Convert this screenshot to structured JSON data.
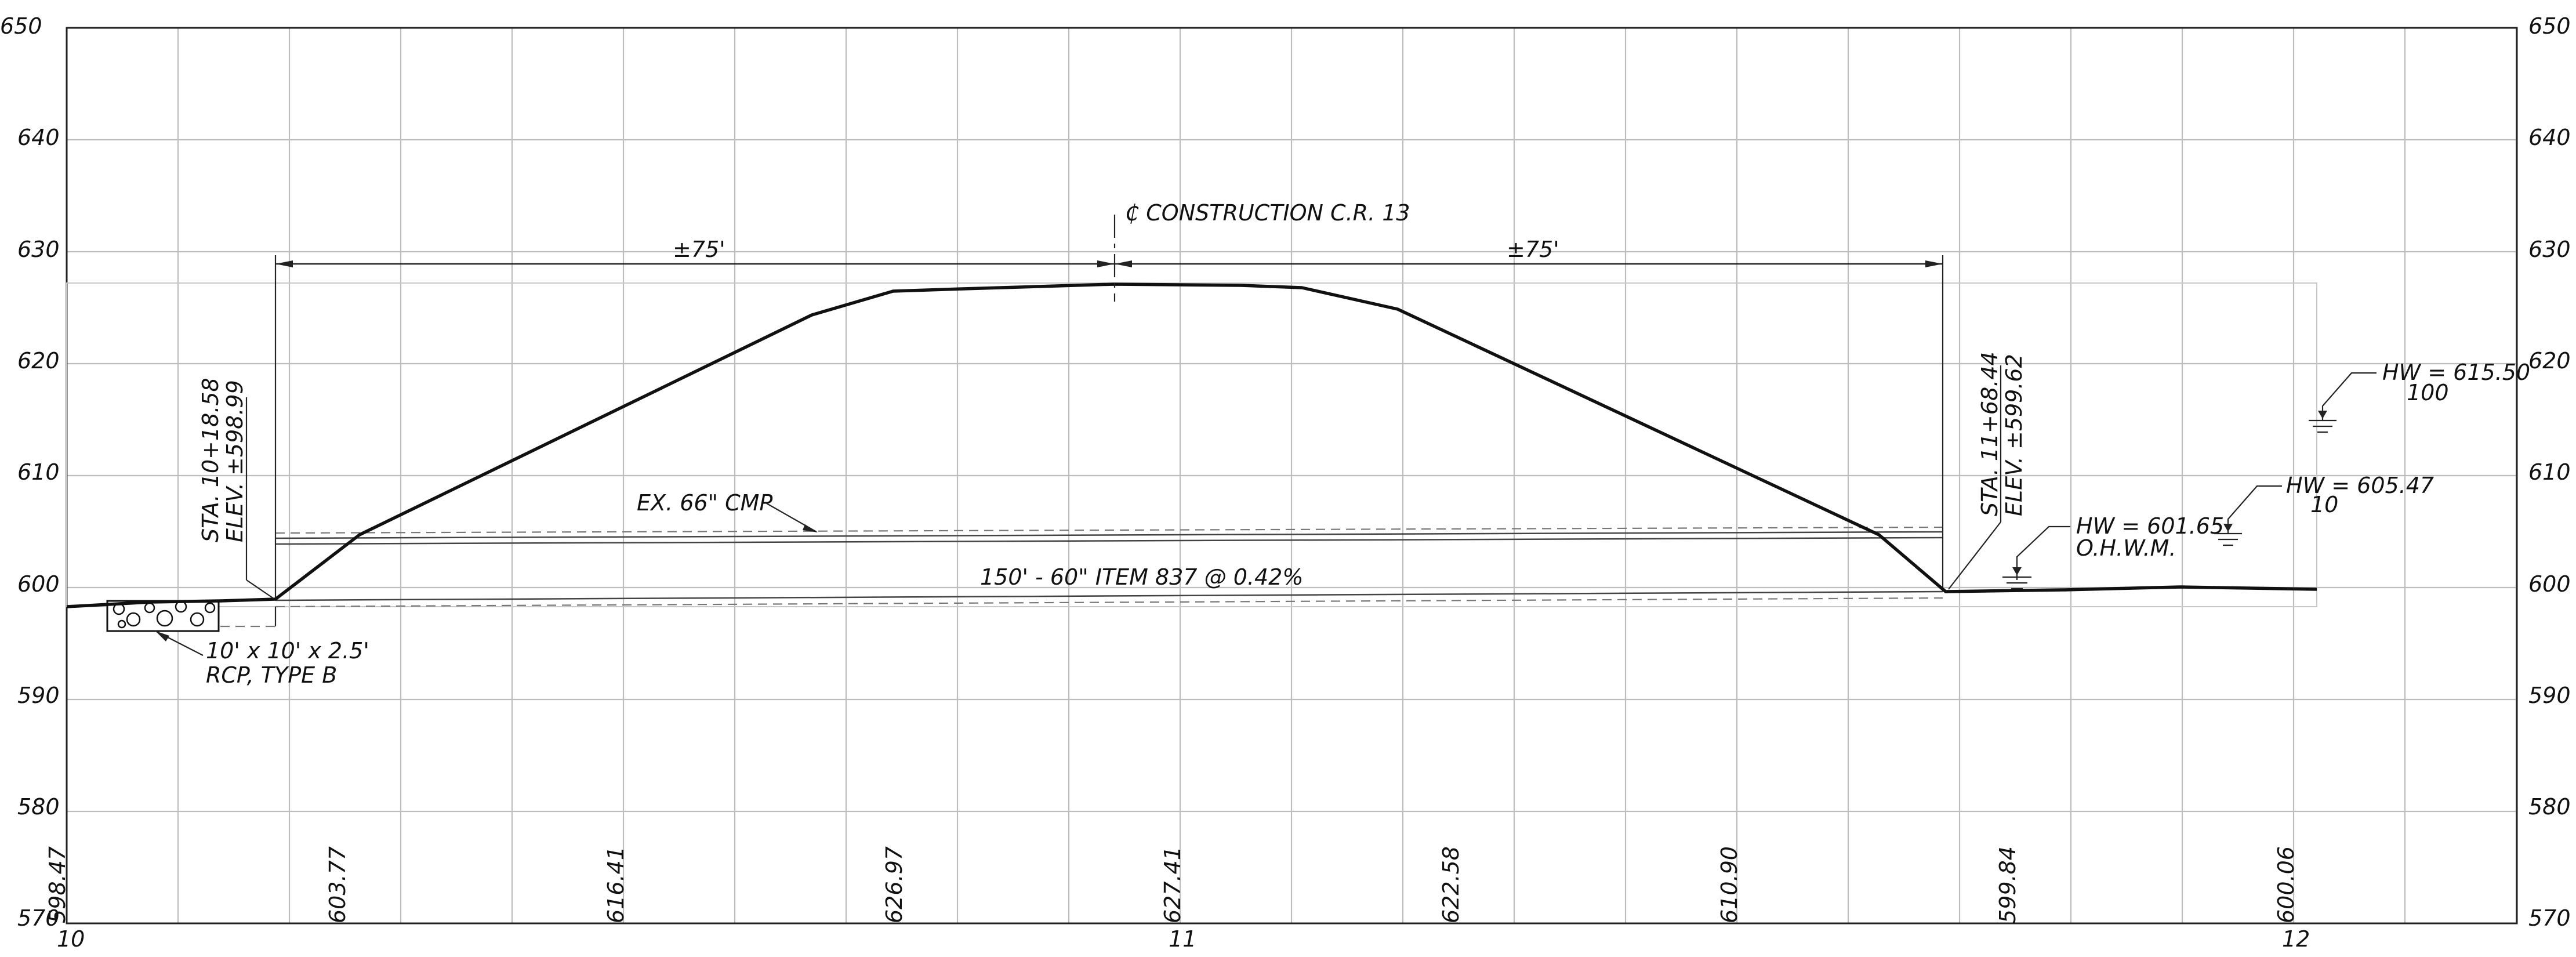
{
  "y_axis": {
    "min": 570,
    "max": 650,
    "step": 10,
    "ticks": [
      "650",
      "640",
      "630",
      "620",
      "610",
      "600",
      "590",
      "580",
      "570"
    ]
  },
  "x_axis": {
    "stations": [
      "10",
      "11",
      "12"
    ]
  },
  "ground_elevations": [
    "598.47",
    "603.77",
    "616.41",
    "626.97",
    "627.41",
    "622.58",
    "610.90",
    "599.84",
    "600.06"
  ],
  "labels": {
    "centerline": "₵ CONSTRUCTION C.R. 13",
    "dim_left": "±75'",
    "dim_right": "±75'",
    "left_station": "STA. 10+18.58",
    "left_elev": "ELEV. ±598.99",
    "right_station": "STA. 11+68.44",
    "right_elev": "ELEV. ±599.62",
    "existing_pipe": "EX. 66\" CMP",
    "proposed_pipe": "150' - 60\" ITEM 837 @ 0.42%",
    "rcp_line1": "10' x 10' x 2.5'",
    "rcp_line2": "RCP, TYPE B",
    "hw_ohwm": "HW = 601.65",
    "ohwm": "O.H.W.M.",
    "hw10": "HW = 605.47",
    "hw10_freq": "10",
    "hw100": "HW = 615.50",
    "hw100_freq": "100"
  }
}
